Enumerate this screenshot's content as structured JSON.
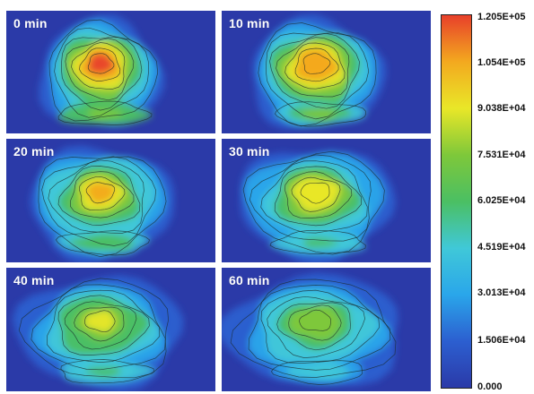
{
  "chart_data": {
    "type": "heatmap",
    "panels": [
      {
        "title": "0 min",
        "peak": 120500
      },
      {
        "title": "10 min",
        "peak": 112000
      },
      {
        "title": "20 min",
        "peak": 104000
      },
      {
        "title": "30 min",
        "peak": 96000
      },
      {
        "title": "40 min",
        "peak": 88000
      },
      {
        "title": "60 min",
        "peak": 80000
      }
    ],
    "colorbar": {
      "min": 0,
      "max": 120500,
      "tick_labels": [
        "1.205E+05",
        "1.054E+05",
        "9.038E+04",
        "7.531E+04",
        "6.025E+04",
        "4.519E+04",
        "3.013E+04",
        "1.506E+04",
        "0.000"
      ],
      "colors": [
        "#2b3aa8",
        "#2c5fd0",
        "#2aa6ea",
        "#40c8d8",
        "#4bbf63",
        "#7ec83a",
        "#e9e728",
        "#f3a91f",
        "#e8402a"
      ]
    }
  }
}
